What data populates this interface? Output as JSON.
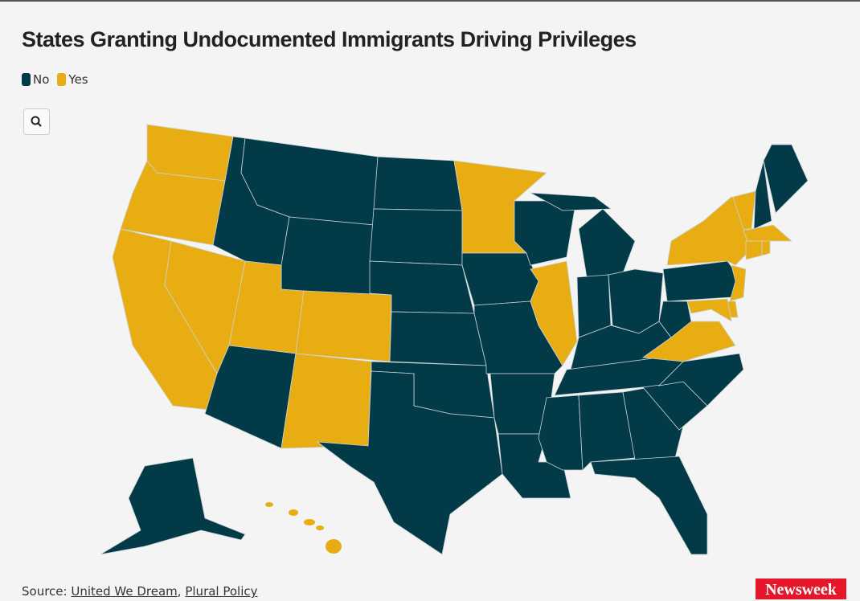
{
  "title": "States Granting Undocumented Immigrants Driving Privileges",
  "legend": [
    {
      "label": "No",
      "color": "#033a48"
    },
    {
      "label": "Yes",
      "color": "#e8ad12"
    }
  ],
  "source": {
    "prefix": "Source:",
    "links": [
      "United We Dream",
      "Plural Policy"
    ],
    "separator": ","
  },
  "logo": "Newsweek"
}
